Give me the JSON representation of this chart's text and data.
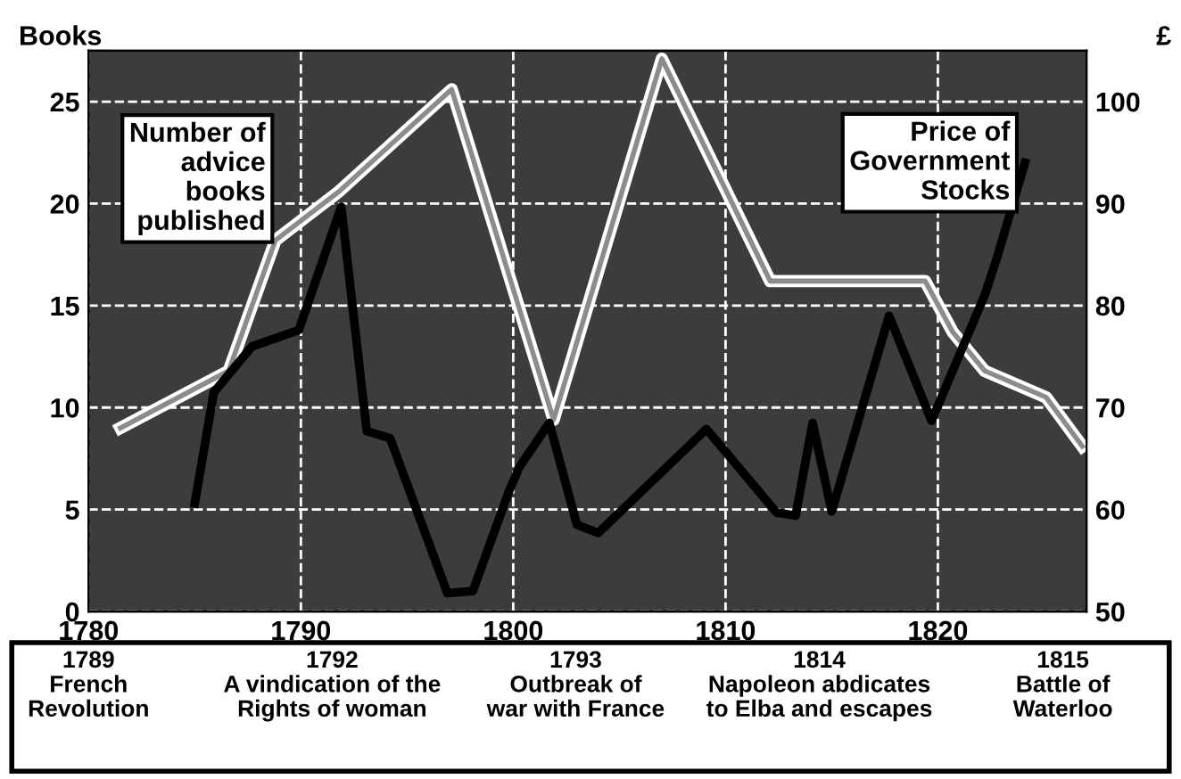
{
  "chart_data": {
    "type": "line",
    "ylabel": "Books",
    "y2label": "£",
    "xlim": [
      1780,
      1827
    ],
    "xticks": [
      1780,
      1790,
      1800,
      1810,
      1820
    ],
    "ylim": [
      0,
      27.5
    ],
    "yticks": [
      0,
      5,
      10,
      15,
      20,
      25
    ],
    "y2lim": [
      50,
      105
    ],
    "y2ticks": [
      50,
      60,
      70,
      80,
      90,
      100
    ],
    "grid": true,
    "marker": "none",
    "series": [
      {
        "name": "Number of advice books published",
        "color": "#8c8c8c",
        "x": [
          1781.5,
          1786.6,
          1788.8,
          1791.8,
          1797.1,
          1801.9,
          1807.0,
          1812.1,
          1819.4,
          1820.7,
          1822.2,
          1825.1,
          1826.8
        ],
        "values": [
          9,
          11.8,
          18.2,
          20.6,
          25.6,
          9.4,
          27.1,
          16.2,
          16.2,
          13.7,
          11.8,
          10.5,
          8.1
        ]
      },
      {
        "name": "Price of Government Stocks",
        "color": "#000000",
        "axis": "y2",
        "x": [
          1785.0,
          1785.9,
          1787.7,
          1789.9,
          1791.9,
          1793.1,
          1794.2,
          1796.9,
          1798.1,
          1799.8,
          1800.3,
          1801.7,
          1803.0,
          1804.0,
          1809.1,
          1812.4,
          1813.3,
          1814.1,
          1815.0,
          1817.7,
          1819.7,
          1822.2,
          1822.8,
          1824.1
        ],
        "values": [
          60.6,
          71.5,
          76,
          77.6,
          89.7,
          67.7,
          67,
          51.8,
          52,
          61.8,
          64.2,
          68.5,
          58.5,
          57.7,
          67.9,
          59.7,
          59.4,
          68.5,
          59.8,
          79,
          68.7,
          81,
          84.8,
          94
        ]
      }
    ],
    "annotations": [
      "1789\nFrench\nRevolution",
      "1792\nA vindication of the\nRights of woman",
      "1793\nOutbreak of\nwar with France",
      "1814\nNapoleon abdicates\nto Elba and escapes",
      "1815\nBattle of\nWaterloo"
    ]
  }
}
